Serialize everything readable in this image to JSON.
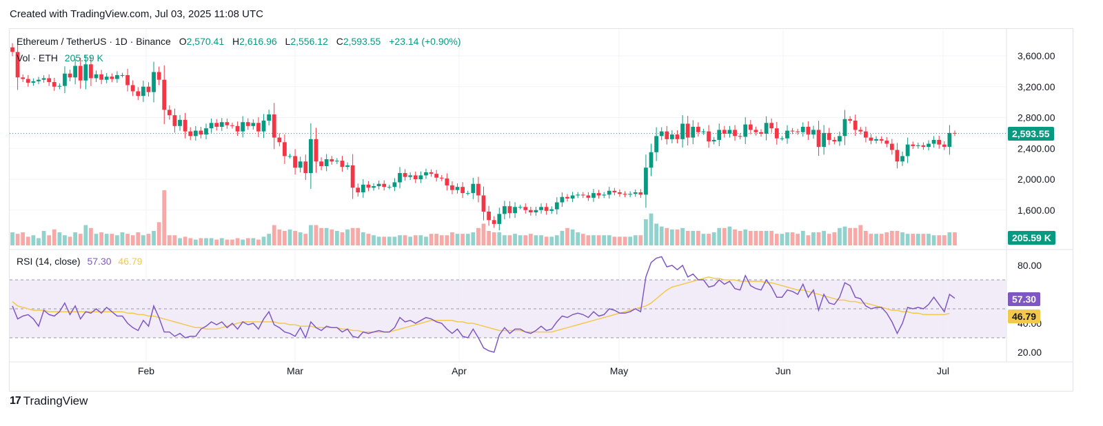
{
  "header": {
    "created_text": "Created with TradingView.com, Jul 03, 2025 11:08 UTC"
  },
  "legend": {
    "symbol": "Ethereum / TetherUS · 1D · Binance",
    "o_label": "O",
    "o_value": "2,570.41",
    "h_label": "H",
    "h_value": "2,616.96",
    "l_label": "L",
    "l_value": "2,556.12",
    "c_label": "C",
    "c_value": "2,593.55",
    "change": "+23.14 (+0.90%)",
    "vol_label": "Vol · ETH",
    "vol_value": "205.59 K"
  },
  "rsi_legend": {
    "label": "RSI (14, close)",
    "rsi_value": "57.30",
    "ma_value": "46.79"
  },
  "badges": {
    "price": "2,593.55",
    "volume": "205.59 K",
    "rsi": "57.30",
    "rsi_ma": "46.79"
  },
  "footer": {
    "logo_mark": "17",
    "logo_text": "TradingView"
  },
  "colors": {
    "up": "#089981",
    "down": "#f23645",
    "rsi": "#7e57c2",
    "rsi_ma": "#f2c94c",
    "rsi_band": "#ede7f6"
  },
  "chart_data": {
    "type": "candlestick",
    "x_ticks": [
      "Feb",
      "Mar",
      "Apr",
      "May",
      "Jun",
      "Jul"
    ],
    "price_ticks": [
      "3,600.00",
      "3,200.00",
      "2,800.00",
      "2,400.00",
      "2,000.00",
      "1,600.00"
    ],
    "price_tick_values": [
      3600,
      3200,
      2800,
      2400,
      2000,
      1600
    ],
    "rsi_ticks": [
      "80.00",
      "40.00",
      "20.00"
    ],
    "rsi_tick_values": [
      80,
      40,
      20
    ],
    "rsi_levels": [
      70,
      50,
      30
    ],
    "last_close": 2593.55,
    "closes": [
      3650,
      3320,
      3300,
      3250,
      3270,
      3290,
      3310,
      3260,
      3200,
      3210,
      3370,
      3320,
      3470,
      3280,
      3490,
      3310,
      3360,
      3290,
      3330,
      3300,
      3350,
      3350,
      3220,
      3140,
      3080,
      3200,
      3130,
      3390,
      3290,
      2900,
      2830,
      2690,
      2770,
      2620,
      2560,
      2630,
      2580,
      2660,
      2730,
      2680,
      2740,
      2700,
      2690,
      2620,
      2740,
      2690,
      2730,
      2620,
      2760,
      2840,
      2540,
      2480,
      2300,
      2300,
      2150,
      2230,
      2080,
      2520,
      2230,
      2170,
      2260,
      2230,
      2240,
      2160,
      2180,
      1890,
      1830,
      1930,
      1890,
      1910,
      1940,
      1900,
      1900,
      1960,
      2080,
      2030,
      2050,
      2000,
      2050,
      2090,
      2070,
      2020,
      2010,
      1920,
      1860,
      1900,
      1820,
      1820,
      1940,
      1790,
      1580,
      1470,
      1420,
      1550,
      1650,
      1560,
      1640,
      1640,
      1600,
      1570,
      1600,
      1640,
      1590,
      1610,
      1700,
      1770,
      1750,
      1790,
      1800,
      1790,
      1760,
      1820,
      1790,
      1800,
      1850,
      1830,
      1810,
      1800,
      1810,
      1830,
      1800,
      2150,
      2350,
      2560,
      2620,
      2520,
      2580,
      2520,
      2720,
      2540,
      2680,
      2610,
      2620,
      2490,
      2510,
      2640,
      2590,
      2640,
      2560,
      2550,
      2710,
      2640,
      2610,
      2590,
      2730,
      2660,
      2530,
      2530,
      2630,
      2620,
      2610,
      2680,
      2580,
      2640,
      2420,
      2600,
      2510,
      2490,
      2560,
      2780,
      2760,
      2640,
      2620,
      2540,
      2500,
      2520,
      2500,
      2460,
      2380,
      2230,
      2300,
      2450,
      2430,
      2440,
      2420,
      2460,
      2510,
      2450,
      2420,
      2600,
      2593
    ],
    "rsi": [
      52,
      43,
      45,
      46,
      43,
      38,
      49,
      46,
      45,
      48,
      54,
      46,
      52,
      43,
      48,
      47,
      50,
      47,
      51,
      48,
      45,
      45,
      40,
      37,
      35,
      42,
      38,
      52,
      44,
      34,
      34,
      31,
      33,
      30,
      31,
      31,
      36,
      38,
      41,
      39,
      41,
      37,
      40,
      36,
      41,
      39,
      40,
      36,
      43,
      48,
      39,
      37,
      34,
      33,
      31,
      37,
      30,
      41,
      37,
      35,
      38,
      37,
      37,
      34,
      36,
      31,
      30,
      34,
      33,
      34,
      35,
      34,
      34,
      37,
      44,
      41,
      42,
      40,
      42,
      44,
      43,
      41,
      40,
      36,
      33,
      36,
      31,
      30,
      36,
      30,
      23,
      21,
      20,
      32,
      37,
      33,
      36,
      36,
      34,
      33,
      35,
      38,
      35,
      36,
      41,
      45,
      44,
      46,
      47,
      46,
      44,
      48,
      45,
      46,
      50,
      49,
      47,
      47,
      48,
      50,
      48,
      72,
      82,
      85,
      86,
      79,
      80,
      77,
      80,
      72,
      74,
      70,
      70,
      65,
      66,
      70,
      67,
      69,
      64,
      63,
      73,
      66,
      64,
      63,
      70,
      65,
      58,
      58,
      63,
      62,
      60,
      67,
      58,
      63,
      49,
      60,
      54,
      53,
      58,
      68,
      66,
      58,
      57,
      52,
      50,
      51,
      51,
      47,
      41,
      33,
      40,
      51,
      50,
      51,
      50,
      53,
      58,
      53,
      48,
      60,
      57.3
    ],
    "rsi_ma": [
      55,
      52,
      51,
      50,
      49,
      49,
      49,
      48,
      48,
      48,
      48,
      48,
      48,
      48,
      48,
      48,
      48,
      48,
      48,
      48,
      48,
      48,
      47,
      47,
      46,
      46,
      45,
      45,
      44,
      43,
      42,
      41,
      40,
      39,
      38,
      37,
      37,
      36,
      36,
      36,
      37,
      38,
      39,
      40,
      41,
      41,
      41,
      41,
      41,
      41,
      41,
      40,
      40,
      39,
      39,
      38,
      38,
      38,
      37,
      37,
      37,
      37,
      37,
      36,
      36,
      35,
      35,
      34,
      34,
      34,
      34,
      34,
      34,
      35,
      36,
      37,
      38,
      39,
      40,
      41,
      42,
      42,
      42,
      42,
      42,
      41,
      41,
      40,
      40,
      39,
      38,
      37,
      36,
      35,
      35,
      35,
      35,
      35,
      34,
      34,
      34,
      34,
      34,
      34,
      35,
      36,
      37,
      38,
      39,
      40,
      41,
      42,
      43,
      44,
      45,
      46,
      47,
      48,
      49,
      50,
      51,
      52,
      54,
      57,
      60,
      63,
      65,
      66,
      67,
      68,
      69,
      70,
      71,
      72,
      71,
      71,
      70,
      70,
      70,
      69,
      69,
      69,
      69,
      69,
      68,
      68,
      67,
      66,
      65,
      64,
      63,
      63,
      62,
      61,
      60,
      59,
      58,
      57,
      56,
      56,
      55,
      55,
      54,
      54,
      53,
      52,
      51,
      50,
      49,
      49,
      48,
      48,
      47,
      47,
      46,
      46,
      46,
      46,
      46,
      46.79
    ],
    "volume": [
      9,
      8,
      9,
      6,
      7,
      5,
      10,
      7,
      11,
      9,
      7,
      6,
      9,
      8,
      14,
      12,
      8,
      9,
      8,
      8,
      7,
      9,
      8,
      7,
      9,
      7,
      8,
      10,
      16,
      38,
      7,
      7,
      5,
      6,
      5,
      4,
      5,
      5,
      5,
      4,
      5,
      4,
      4,
      5,
      4,
      5,
      5,
      4,
      6,
      8,
      14,
      11,
      10,
      11,
      10,
      9,
      8,
      14,
      14,
      12,
      12,
      11,
      10,
      9,
      11,
      12,
      12,
      9,
      8,
      7,
      6,
      6,
      6,
      6,
      7,
      7,
      6,
      7,
      7,
      6,
      8,
      8,
      7,
      7,
      9,
      8,
      8,
      8,
      9,
      12,
      15,
      10,
      9,
      9,
      7,
      7,
      8,
      7,
      7,
      8,
      7,
      7,
      6,
      6,
      7,
      10,
      12,
      11,
      9,
      8,
      7,
      7,
      7,
      7,
      7,
      6,
      6,
      6,
      6,
      7,
      7,
      18,
      22,
      15,
      13,
      12,
      11,
      11,
      12,
      10,
      10,
      10,
      8,
      8,
      9,
      12,
      12,
      13,
      11,
      10,
      11,
      10,
      10,
      10,
      10,
      10,
      8,
      8,
      9,
      9,
      8,
      10,
      7,
      9,
      9,
      10,
      8,
      9,
      12,
      13,
      12,
      12,
      14,
      10,
      8,
      8,
      8,
      9,
      10,
      10,
      9,
      8,
      8,
      8,
      8,
      8,
      7,
      7,
      7,
      9,
      9
    ]
  }
}
